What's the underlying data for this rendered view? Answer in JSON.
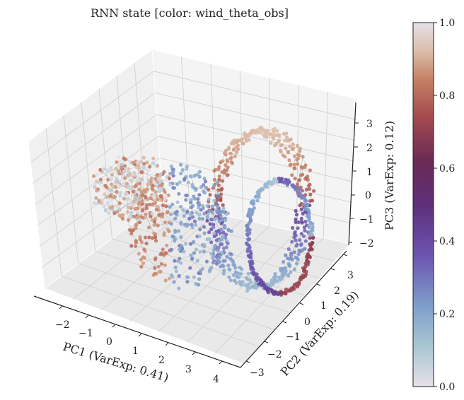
{
  "chart_data": {
    "type": "scatter3d",
    "title": "RNN state [color: wind_theta_obs]",
    "xlabel": "PC1 (VarExp: 0.41)",
    "ylabel": "PC2 (VarExp: 0.19)",
    "zlabel": "PC3 (VarExp: 0.12)",
    "x_ticks": [
      "−2",
      "−1",
      "0",
      "1",
      "2",
      "3",
      "4"
    ],
    "y_ticks": [
      "−3",
      "−2",
      "−1",
      "0",
      "1",
      "2",
      "3"
    ],
    "z_ticks": [
      "−2",
      "−1",
      "0",
      "1",
      "2",
      "3"
    ],
    "xlim": [
      -2.6,
      4.4
    ],
    "ylim": [
      -3.3,
      3.5
    ],
    "zlim": [
      -2.4,
      3.5
    ],
    "colorbar": {
      "ticks": [
        "0.0",
        "0.2",
        "0.4",
        "0.6",
        "0.8",
        "1.0"
      ],
      "range": [
        0,
        1
      ],
      "colormap": "twilight-like",
      "stops": [
        "#e6e0e8",
        "#a9c6d2",
        "#7f9fcb",
        "#6b55b0",
        "#5e2f79",
        "#6a2a55",
        "#a34a4f",
        "#c47e62",
        "#dcbca7",
        "#e6e0e8"
      ]
    },
    "grid": true,
    "pane_color": "#f2f2f2"
  }
}
